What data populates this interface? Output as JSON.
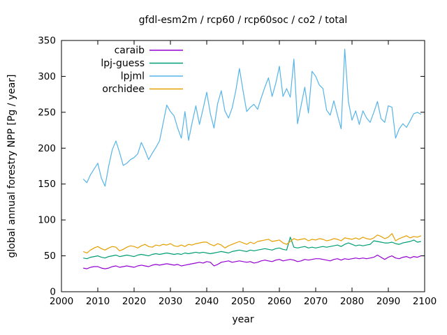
{
  "chart_data": {
    "type": "line",
    "title": "gfdl-esm2m / rcp60 / rcp60soc / co2 / total",
    "xlabel": "year",
    "ylabel": "global annual forestry NPP [Pg / year]",
    "xlim": [
      2000,
      2100
    ],
    "ylim": [
      0,
      350
    ],
    "x_ticks": [
      2000,
      2010,
      2020,
      2030,
      2040,
      2050,
      2060,
      2070,
      2080,
      2090,
      2100
    ],
    "y_ticks": [
      0,
      50,
      100,
      150,
      200,
      250,
      300,
      350
    ],
    "grid": false,
    "legend_position": "top-left-inside",
    "background_color": "#ffffff",
    "axis_color": "#000000",
    "x_start_year": 2006,
    "x_step": 1,
    "series": [
      {
        "name": "caraib",
        "color": "#9400d3",
        "values": [
          33,
          32,
          34,
          35,
          35,
          33,
          32,
          33,
          35,
          36,
          34,
          35,
          36,
          35,
          34,
          36,
          37,
          36,
          35,
          37,
          38,
          37,
          38,
          39,
          38,
          37,
          38,
          36,
          37,
          38,
          39,
          40,
          41,
          40,
          42,
          41,
          36,
          38,
          41,
          42,
          43,
          41,
          42,
          43,
          42,
          41,
          42,
          40,
          41,
          43,
          44,
          43,
          42,
          44,
          45,
          43,
          44,
          45,
          44,
          42,
          43,
          45,
          44,
          45,
          46,
          46,
          45,
          44,
          43,
          45,
          46,
          44,
          46,
          45,
          46,
          47,
          46,
          47,
          46,
          47,
          48,
          51,
          48,
          45,
          48,
          50,
          47,
          46,
          48,
          49,
          47,
          49,
          48,
          50
        ]
      },
      {
        "name": "lpj-guess",
        "color": "#009e73",
        "values": [
          47,
          46,
          48,
          49,
          50,
          48,
          47,
          49,
          50,
          51,
          49,
          50,
          51,
          50,
          49,
          51,
          52,
          51,
          50,
          52,
          53,
          52,
          53,
          54,
          53,
          52,
          53,
          52,
          54,
          53,
          54,
          55,
          54,
          55,
          54,
          53,
          54,
          55,
          56,
          55,
          54,
          56,
          57,
          58,
          57,
          56,
          58,
          57,
          58,
          59,
          60,
          59,
          58,
          60,
          61,
          59,
          58,
          76,
          62,
          61,
          62,
          63,
          61,
          62,
          61,
          62,
          63,
          62,
          63,
          64,
          65,
          63,
          66,
          68,
          66,
          64,
          65,
          64,
          65,
          66,
          71,
          70,
          69,
          68,
          68,
          69,
          67,
          66,
          68,
          69,
          70,
          72,
          69,
          70
        ]
      },
      {
        "name": "lpjml",
        "color": "#56b4e9",
        "values": [
          157,
          152,
          163,
          171,
          179,
          158,
          147,
          175,
          198,
          210,
          194,
          176,
          179,
          184,
          187,
          192,
          208,
          197,
          184,
          193,
          201,
          210,
          235,
          260,
          251,
          245,
          228,
          214,
          251,
          211,
          236,
          259,
          233,
          255,
          278,
          248,
          228,
          262,
          280,
          252,
          242,
          256,
          280,
          311,
          280,
          251,
          257,
          261,
          254,
          270,
          285,
          298,
          272,
          290,
          314,
          272,
          283,
          271,
          324,
          234,
          260,
          285,
          249,
          307,
          300,
          288,
          283,
          253,
          246,
          266,
          246,
          227,
          338,
          265,
          239,
          252,
          233,
          252,
          242,
          236,
          250,
          265,
          241,
          236,
          259,
          257,
          214,
          227,
          234,
          229,
          238,
          248,
          250,
          247
        ]
      },
      {
        "name": "orchidee",
        "color": "#e69f00",
        "values": [
          56,
          54,
          58,
          61,
          63,
          60,
          58,
          61,
          63,
          62,
          57,
          59,
          62,
          64,
          63,
          61,
          64,
          66,
          63,
          62,
          65,
          64,
          66,
          65,
          67,
          64,
          63,
          65,
          63,
          66,
          65,
          67,
          68,
          69,
          69,
          66,
          64,
          67,
          65,
          61,
          64,
          66,
          68,
          70,
          68,
          66,
          69,
          67,
          70,
          71,
          72,
          73,
          70,
          71,
          72,
          68,
          66,
          70,
          74,
          72,
          73,
          74,
          71,
          73,
          72,
          74,
          73,
          71,
          72,
          74,
          73,
          71,
          75,
          74,
          73,
          75,
          73,
          76,
          74,
          73,
          75,
          79,
          77,
          74,
          76,
          81,
          71,
          74,
          76,
          78,
          75,
          77,
          76,
          78
        ]
      }
    ]
  }
}
